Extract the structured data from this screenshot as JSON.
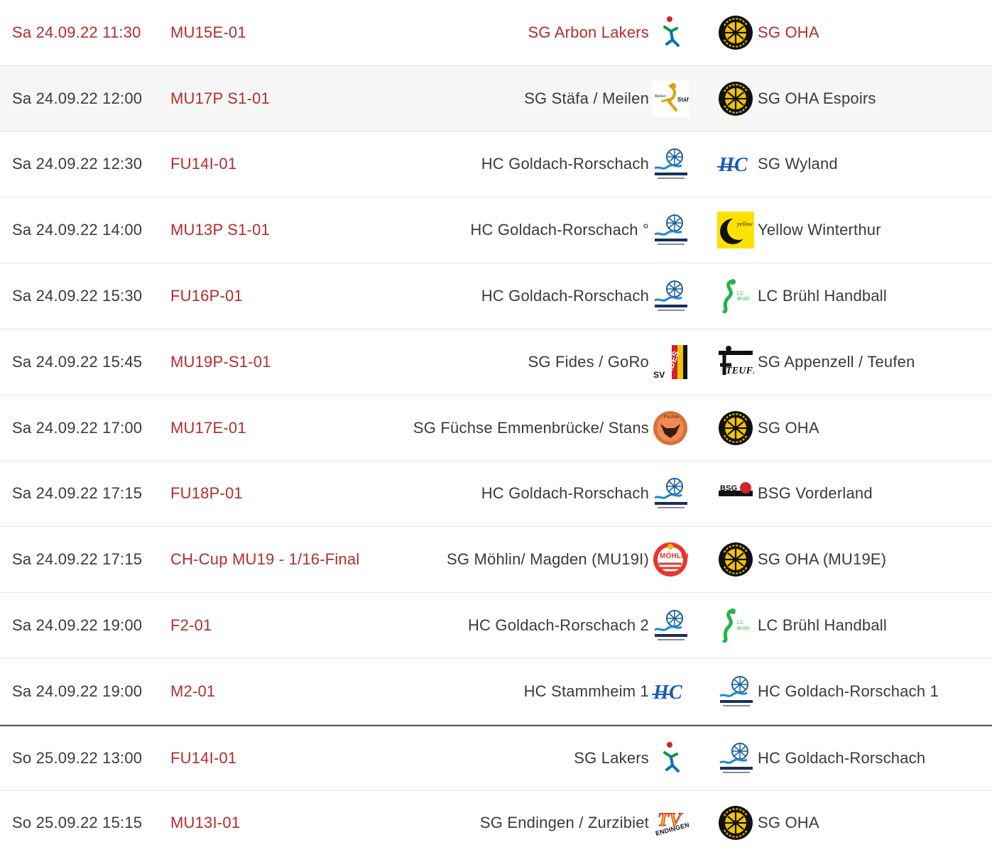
{
  "accent_color": "#b32d2d",
  "games": [
    {
      "date": "Sa 24.09.22 11:30",
      "league": "MU15E-01",
      "home": "SG Arbon Lakers",
      "home_logo": "figure-logo",
      "away": "SG OHA",
      "away_logo": "oha-logo",
      "style": "current",
      "home_logo_name": "arbon-lakers-logo",
      "away_logo_name": "sg-oha-logo"
    },
    {
      "date": "Sa 24.09.22 12:00",
      "league": "MU17P S1-01",
      "home": "SG Stäfa / Meilen",
      "home_logo": "staefa-logo",
      "away": "SG OHA Espoirs",
      "away_logo": "oha-logo",
      "style": "hl",
      "home_logo_name": "staefa-meilen-logo",
      "away_logo_name": "sg-oha-logo"
    },
    {
      "date": "Sa 24.09.22 12:30",
      "league": "FU14I-01",
      "home": "HC Goldach-Rorschach",
      "home_logo": "goldach-logo",
      "away": "SG Wyland",
      "away_logo": "hc-logo",
      "style": "",
      "home_logo_name": "hc-goldach-rorschach-logo",
      "away_logo_name": "sg-wyland-logo"
    },
    {
      "date": "Sa 24.09.22 14:00",
      "league": "MU13P S1-01",
      "home": "HC Goldach-Rorschach °",
      "home_logo": "goldach-logo",
      "away": "Yellow Winterthur",
      "away_logo": "yellow-logo",
      "style": "",
      "home_logo_name": "hc-goldach-rorschach-logo",
      "away_logo_name": "yellow-winterthur-logo"
    },
    {
      "date": "Sa 24.09.22 15:30",
      "league": "FU16P-01",
      "home": "HC Goldach-Rorschach",
      "home_logo": "goldach-logo",
      "away": "LC Brühl Handball",
      "away_logo": "bruehl-logo",
      "style": "",
      "home_logo_name": "hc-goldach-rorschach-logo",
      "away_logo_name": "lc-bruehl-logo"
    },
    {
      "date": "Sa 24.09.22 15:45",
      "league": "MU19P-S1-01",
      "home": "SG Fides / GoRo",
      "home_logo": "fides-logo",
      "away": "SG Appenzell / Teufen",
      "away_logo": "teufen-logo",
      "style": "",
      "home_logo_name": "sv-fides-logo",
      "away_logo_name": "appenzell-teufen-logo"
    },
    {
      "date": "Sa 24.09.22 17:00",
      "league": "MU17E-01",
      "home": "SG Füchse Emmenbrücke/ Stans",
      "home_logo": "fuechse-logo",
      "away": "SG OHA",
      "away_logo": "oha-logo",
      "style": "",
      "home_logo_name": "fuechse-emmenbruecke-logo",
      "away_logo_name": "sg-oha-logo"
    },
    {
      "date": "Sa 24.09.22 17:15",
      "league": "FU18P-01",
      "home": "HC Goldach-Rorschach",
      "home_logo": "goldach-logo",
      "away": "BSG Vorderland",
      "away_logo": "bsg-logo",
      "style": "",
      "home_logo_name": "hc-goldach-rorschach-logo",
      "away_logo_name": "bsg-vorderland-logo"
    },
    {
      "date": "Sa 24.09.22 17:15",
      "league": "CH-Cup MU19 - 1/16-Final",
      "home": "SG Möhlin/ Magden (MU19I)",
      "home_logo": "moehlin-logo",
      "away": "SG OHA (MU19E)",
      "away_logo": "oha-logo",
      "style": "",
      "home_logo_name": "moehlin-logo",
      "away_logo_name": "sg-oha-logo"
    },
    {
      "date": "Sa 24.09.22 19:00",
      "league": "F2-01",
      "home": "HC Goldach-Rorschach 2",
      "home_logo": "goldach-logo",
      "away": "LC Brühl Handball",
      "away_logo": "bruehl-logo",
      "style": "",
      "home_logo_name": "hc-goldach-rorschach-logo",
      "away_logo_name": "lc-bruehl-logo"
    },
    {
      "date": "Sa 24.09.22 19:00",
      "league": "M2-01",
      "home": "HC Stammheim 1",
      "home_logo": "hc-logo",
      "away": "HC Goldach-Rorschach 1",
      "away_logo": "goldach-logo",
      "style": "",
      "home_logo_name": "hc-stammheim-logo",
      "away_logo_name": "hc-goldach-rorschach-logo"
    },
    {
      "date": "So 25.09.22 13:00",
      "league": "FU14I-01",
      "home": "SG Lakers",
      "home_logo": "figure-logo",
      "away": "HC Goldach-Rorschach",
      "away_logo": "goldach-logo",
      "style": "day-break",
      "home_logo_name": "sg-lakers-logo",
      "away_logo_name": "hc-goldach-rorschach-logo"
    },
    {
      "date": "So 25.09.22 15:15",
      "league": "MU13I-01",
      "home": "SG Endingen / Zurzibiet",
      "home_logo": "endingen-logo",
      "away": "SG OHA",
      "away_logo": "oha-logo",
      "style": "",
      "home_logo_name": "tv-endingen-logo",
      "away_logo_name": "sg-oha-logo"
    }
  ]
}
